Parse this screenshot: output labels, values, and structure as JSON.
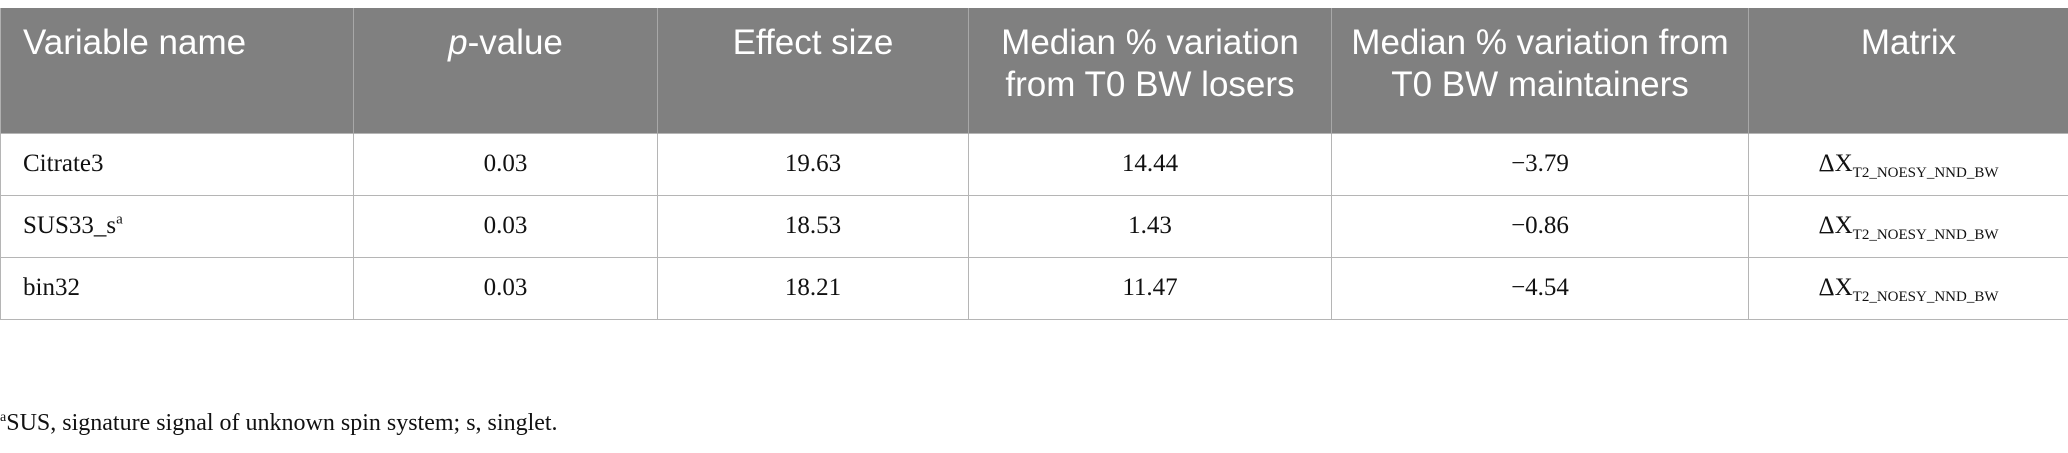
{
  "table": {
    "headers": {
      "variable": "Variable name",
      "pvalue_italic": "p",
      "pvalue_rest": "-value",
      "effect": "Effect size",
      "losers": "Median % variation from T0 BW losers",
      "maintainers": "Median % variation from T0 BW maintainers",
      "matrix": "Matrix"
    },
    "rows": [
      {
        "name": "Citrate3",
        "name_sup": "",
        "pvalue": "0.03",
        "effect": "19.63",
        "losers": "14.44",
        "maintainers": "−3.79",
        "matrix_main": "ΔX",
        "matrix_sub": "T2_NOESY_NND_BW"
      },
      {
        "name": "SUS33_s",
        "name_sup": "a",
        "pvalue": "0.03",
        "effect": "18.53",
        "losers": "1.43",
        "maintainers": "−0.86",
        "matrix_main": "ΔX",
        "matrix_sub": "T2_NOESY_NND_BW"
      },
      {
        "name": "bin32",
        "name_sup": "",
        "pvalue": "0.03",
        "effect": "18.21",
        "losers": "11.47",
        "maintainers": "−4.54",
        "matrix_main": "ΔX",
        "matrix_sub": "T2_NOESY_NND_BW"
      }
    ]
  },
  "footnote": {
    "marker": "a",
    "text": "SUS, signature signal of unknown spin system; s, singlet."
  },
  "colors": {
    "header_bg": "#808080",
    "header_text": "#ffffff",
    "border": "#b5b5b5"
  }
}
